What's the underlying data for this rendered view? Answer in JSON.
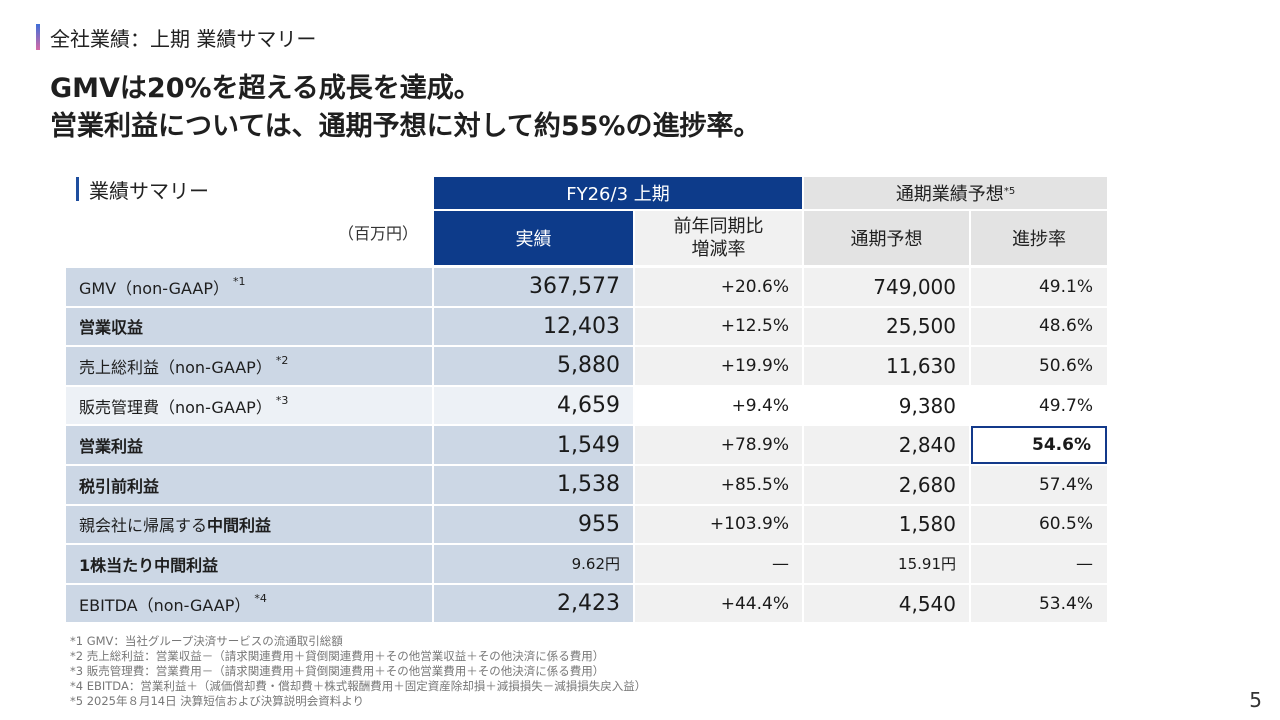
{
  "section_title": "全社業績：上期 業績サマリー",
  "headline": {
    "line1": "GMVは20%を超える成長を達成。",
    "line2": "営業利益については、通期予想に対して約55%の進捗率。"
  },
  "table": {
    "title": "業績サマリー",
    "unit": "（百万円）",
    "header_fy": "FY26/3 上期",
    "header_forecast": "通期業績予想",
    "header_forecast_note": "*5",
    "col_actual": "実績",
    "col_yoy_line1": "前年同期比",
    "col_yoy_line2": "増減率",
    "col_fc": "通期予想",
    "col_progress": "進捗率",
    "rows": [
      {
        "label": "GMV（non-GAAP）",
        "note": "*1",
        "actual": "367,577",
        "yoy": "+20.6%",
        "forecast": "749,000",
        "progress": "49.1%"
      },
      {
        "label": "営業収益",
        "note": "",
        "actual": "12,403",
        "yoy": "+12.5%",
        "forecast": "25,500",
        "progress": "48.6%"
      },
      {
        "label": "売上総利益（non-GAAP）",
        "note": "*2",
        "actual": "5,880",
        "yoy": "+19.9%",
        "forecast": "11,630",
        "progress": "50.6%"
      },
      {
        "label": "販売管理費（non-GAAP）",
        "note": "*3",
        "actual": "4,659",
        "yoy": "+9.4%",
        "forecast": "9,380",
        "progress": "49.7%"
      },
      {
        "label": "営業利益",
        "note": "",
        "actual": "1,549",
        "yoy": "+78.9%",
        "forecast": "2,840",
        "progress": "54.6%"
      },
      {
        "label": "税引前利益",
        "note": "",
        "actual": "1,538",
        "yoy": "+85.5%",
        "forecast": "2,680",
        "progress": "57.4%"
      },
      {
        "label_pre": "親会社に帰属する",
        "label": "中間利益",
        "note": "",
        "actual": "955",
        "yoy": "+103.9%",
        "forecast": "1,580",
        "progress": "60.5%"
      },
      {
        "label": "1株当たり中間利益",
        "note": "",
        "actual": "9.62円",
        "yoy": "—",
        "forecast": "15.91円",
        "progress": "—"
      },
      {
        "label": "EBITDA（non-GAAP）",
        "note": "*4",
        "actual": "2,423",
        "yoy": "+44.4%",
        "forecast": "4,540",
        "progress": "53.4%"
      }
    ]
  },
  "footnotes": [
    "*1 GMV：当社グループ決済サービスの流通取引総額",
    "*2 売上総利益：営業収益－（請求関連費用＋貸倒関連費用＋その他営業収益＋その他決済に係る費用）",
    "*3 販売管理費：営業費用－（請求関連費用＋貸倒関連費用＋その他営業費用＋その他決済に係る費用）",
    "*4 EBITDA：営業利益＋（減価償却費・償却費＋株式報酬費用＋固定資産除却損＋減損損失－減損損失戻入益）",
    "*5 2025年８月14日 決算短信および決算説明会資料より"
  ],
  "page_number": "5",
  "colors": {
    "navy": "#0d3b8a",
    "label_bg": "#ccd7e5",
    "highlight_border": "#13398a"
  }
}
